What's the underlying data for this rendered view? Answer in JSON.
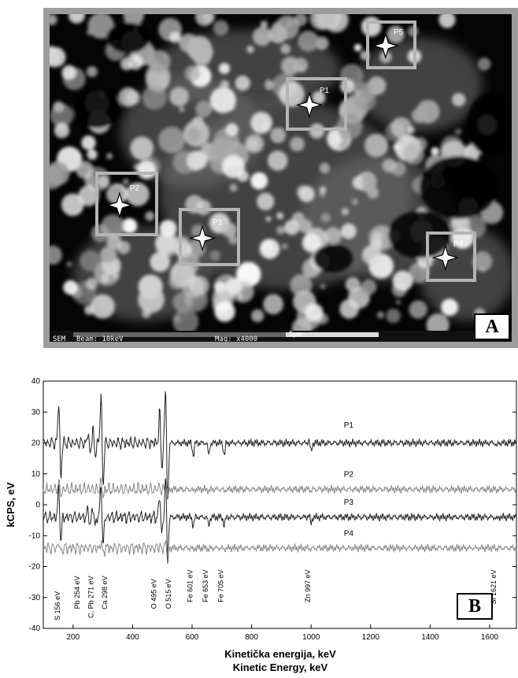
{
  "panel_a": {
    "letter": "A",
    "points": [
      {
        "label": "P1"
      },
      {
        "label": "P2"
      },
      {
        "label": "P3"
      },
      {
        "label": "P4"
      },
      {
        "label": "P5"
      }
    ],
    "info_bar": {
      "mode": "SEM",
      "beam": "Beam: 10keV",
      "mag": "Mag: x4000",
      "scale": "5μm"
    },
    "marker_icon": "four-point-star-icon"
  },
  "panel_b": {
    "letter": "B",
    "chart_data": {
      "type": "line",
      "xlabel": "Kinetička energija, keV",
      "xlabel2": "Kinetic Energy, keV",
      "ylabel": "kCPS, eV",
      "xlim": [
        100,
        1690
      ],
      "ylim": [
        -40,
        40
      ],
      "xticks": [
        200,
        400,
        600,
        800,
        1000,
        1200,
        1400,
        1600
      ],
      "yticks": [
        -40,
        -30,
        -20,
        -10,
        0,
        10,
        20,
        30,
        40
      ],
      "xtick_labels": [
        "200",
        "400",
        "600",
        "800",
        "1000",
        "1200",
        "1400",
        "1600"
      ],
      "ytick_labels": [
        "-40",
        "-30",
        "-20",
        "-10",
        "0",
        "10",
        "20",
        "30",
        "40"
      ],
      "series": [
        {
          "name": "P1",
          "baseline": 20,
          "color": "#222222",
          "label_x": 1110,
          "label_y": 25
        },
        {
          "name": "P2",
          "baseline": 5,
          "color": "#888888",
          "label_x": 1110,
          "label_y": 9
        },
        {
          "name": "P3",
          "baseline": -4,
          "color": "#222222",
          "label_x": 1110,
          "label_y": 0
        },
        {
          "name": "P4",
          "baseline": -14,
          "color": "#888888",
          "label_x": 1110,
          "label_y": -10
        }
      ],
      "peaks": [
        {
          "label": "S 156 eV",
          "x": 156
        },
        {
          "label": "Pb 254 eV",
          "x": 254
        },
        {
          "label": "C, Pb 271 eV",
          "x": 271
        },
        {
          "label": "Ca 298 eV",
          "x": 298
        },
        {
          "label": "O 495 eV",
          "x": 495
        },
        {
          "label": "O 515 eV",
          "x": 515
        },
        {
          "label": "Fe 601 eV",
          "x": 601
        },
        {
          "label": "Fe 653 eV",
          "x": 653
        },
        {
          "label": "Fe 705 eV",
          "x": 705
        },
        {
          "label": "Zn 997 eV",
          "x": 997
        },
        {
          "label": "Si 1621 eV",
          "x": 1621
        }
      ]
    }
  }
}
